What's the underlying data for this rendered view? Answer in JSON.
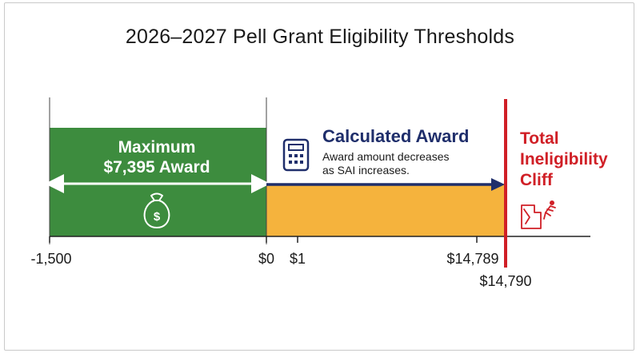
{
  "title": "2026–2027 Pell Grant Eligibility Thresholds",
  "max_award": {
    "line1": "Maximum",
    "line2": "$7,395 Award",
    "color": "#3d8c3e"
  },
  "calculated_award": {
    "heading": "Calculated Award",
    "desc1": "Award amount decreases",
    "desc2": "as SAI increases.",
    "color": "#f5b33d",
    "heading_color": "#1f2e6b"
  },
  "cliff": {
    "line1": "Total",
    "line2": "Ineligibility",
    "line3": "Cliff",
    "color": "#d01f26"
  },
  "axis": {
    "ticks": [
      "-1,500",
      "$0",
      "$1",
      "$14,789"
    ],
    "cliff_value": "$14,790"
  },
  "icons": {
    "money_bag": "money-bag-icon",
    "calculator": "calculator-icon",
    "falling_person": "falling-person-icon"
  }
}
